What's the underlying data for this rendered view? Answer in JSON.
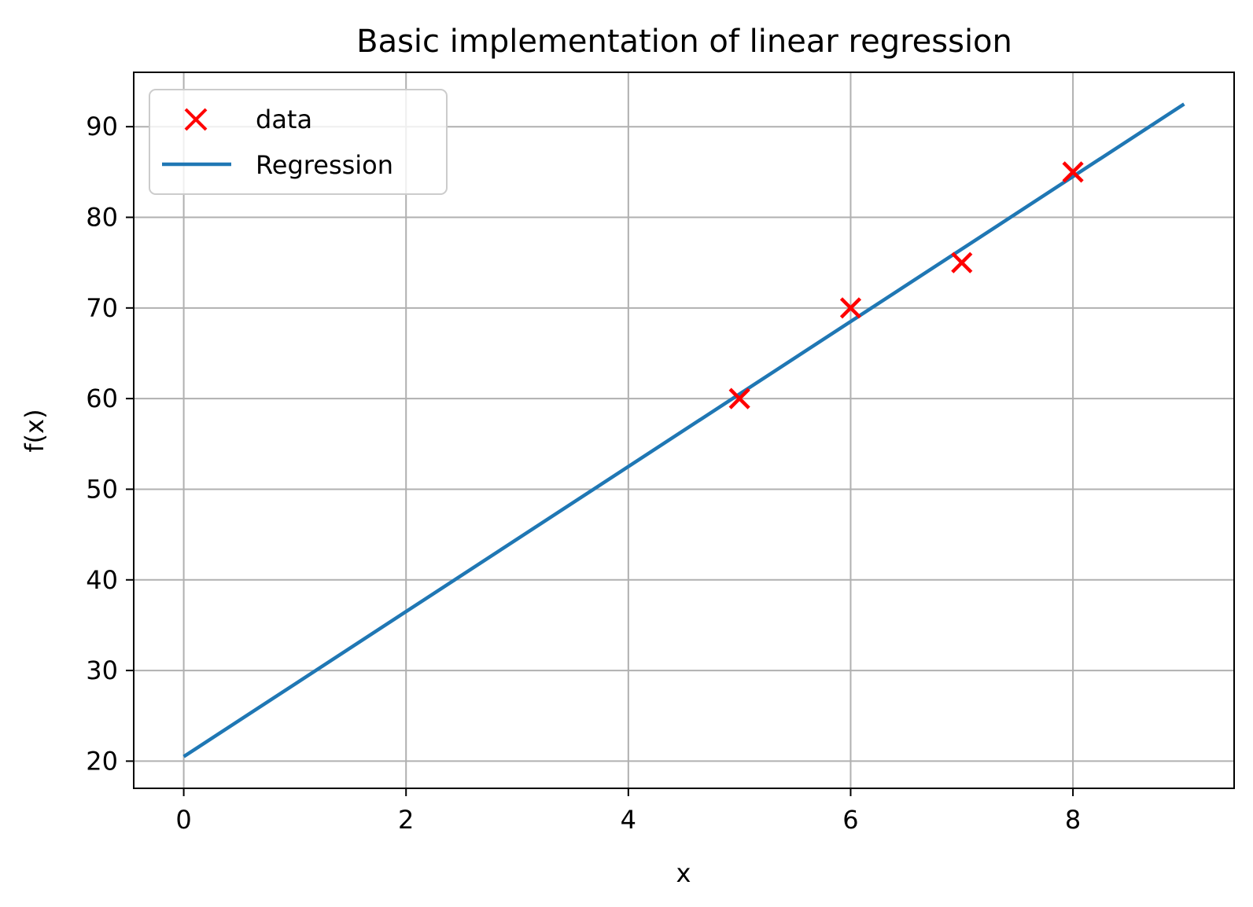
{
  "chart_data": {
    "type": "scatter",
    "title": "Basic implementation of linear regression",
    "xlabel": "x",
    "ylabel": "f(x)",
    "xlim": [
      -0.45,
      9.45
    ],
    "ylim": [
      17,
      96
    ],
    "xticks": [
      0,
      2,
      4,
      6,
      8
    ],
    "yticks": [
      20,
      30,
      40,
      50,
      60,
      70,
      80,
      90
    ],
    "grid": true,
    "legend_position": "top-left",
    "series": [
      {
        "name": "data",
        "kind": "scatter",
        "marker": "x",
        "color": "#ff0000",
        "x": [
          5,
          6,
          7,
          8
        ],
        "y": [
          60,
          70,
          75,
          85
        ]
      },
      {
        "name": "Regression",
        "kind": "line",
        "color": "#1f77b4",
        "x": [
          0,
          9
        ],
        "y": [
          20.5,
          92.5
        ]
      }
    ]
  }
}
